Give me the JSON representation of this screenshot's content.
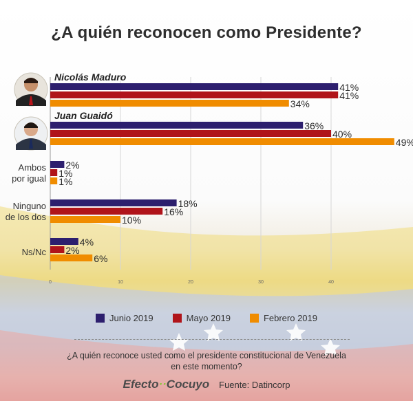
{
  "title": "¿A quién reconocen como Presidente?",
  "colors": {
    "junio": "#2d1f6e",
    "mayo": "#b0141a",
    "febrero": "#f08c00"
  },
  "legend": [
    {
      "key": "junio",
      "label": "Junio 2019"
    },
    {
      "key": "mayo",
      "label": "Mayo 2019"
    },
    {
      "key": "febrero",
      "label": "Febrero 2019"
    }
  ],
  "question": "¿A quién reconoce usted como el presidente constitucional de Venezuela en este momento?",
  "brand": {
    "part1": "Efecto",
    "dots": "··",
    "part2": "Cocuyo"
  },
  "source": "Fuente: Datincorp",
  "chart_data": {
    "type": "bar",
    "orientation": "horizontal",
    "title": "¿A quién reconocen como Presidente?",
    "categories": [
      "Nicolás Maduro",
      "Juan Guaidó",
      "Ambos por igual",
      "Ninguno de los dos",
      "Ns/Nc"
    ],
    "series": [
      {
        "name": "Junio 2019",
        "key": "junio",
        "values": [
          41,
          36,
          2,
          18,
          4
        ]
      },
      {
        "name": "Mayo 2019",
        "key": "mayo",
        "values": [
          41,
          40,
          1,
          16,
          2
        ]
      },
      {
        "name": "Febrero 2019",
        "key": "febrero",
        "values": [
          34,
          49,
          1,
          10,
          6
        ]
      }
    ],
    "xlim": [
      0,
      52
    ],
    "xticks": [
      0,
      10,
      20,
      30,
      40
    ],
    "value_suffix": "%",
    "legend_position": "bottom"
  }
}
